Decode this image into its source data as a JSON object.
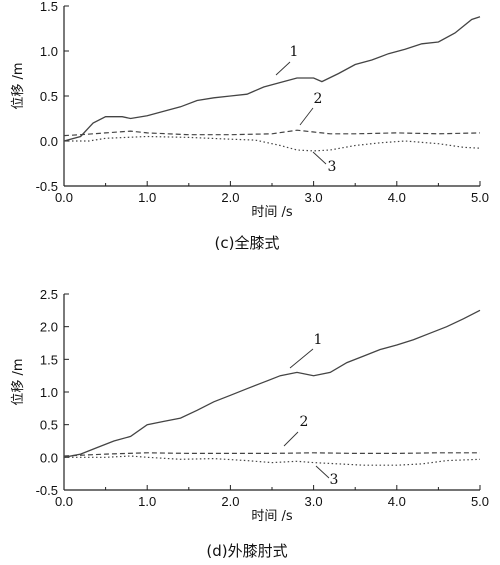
{
  "chart_data": [
    {
      "type": "line",
      "caption": "(c)全膝式",
      "xlabel": "时间 /s",
      "ylabel": "位移 /m",
      "xlim": [
        0,
        5
      ],
      "ylim": [
        -0.5,
        1.5
      ],
      "xticks": [
        "0.0",
        "1.0",
        "2.0",
        "3.0",
        "4.0",
        "5.0"
      ],
      "yticks": [
        "-0.5",
        "0.0",
        "0.5",
        "1.0",
        "1.5"
      ],
      "series": [
        {
          "name": "1",
          "style": "solid",
          "x": [
            0.0,
            0.2,
            0.35,
            0.5,
            0.7,
            0.8,
            1.0,
            1.2,
            1.4,
            1.6,
            1.8,
            2.0,
            2.2,
            2.4,
            2.6,
            2.8,
            3.0,
            3.1,
            3.3,
            3.5,
            3.7,
            3.9,
            4.1,
            4.3,
            4.5,
            4.7,
            4.9,
            5.0
          ],
          "y": [
            0.0,
            0.05,
            0.2,
            0.27,
            0.27,
            0.25,
            0.28,
            0.33,
            0.38,
            0.45,
            0.48,
            0.5,
            0.52,
            0.6,
            0.65,
            0.7,
            0.7,
            0.66,
            0.75,
            0.85,
            0.9,
            0.97,
            1.02,
            1.08,
            1.1,
            1.2,
            1.35,
            1.38
          ]
        },
        {
          "name": "2",
          "style": "dashed",
          "x": [
            0.0,
            0.2,
            0.5,
            0.8,
            1.0,
            1.5,
            2.0,
            2.5,
            2.8,
            3.0,
            3.2,
            3.5,
            4.0,
            4.5,
            5.0
          ],
          "y": [
            0.06,
            0.07,
            0.09,
            0.11,
            0.09,
            0.07,
            0.07,
            0.08,
            0.12,
            0.1,
            0.08,
            0.08,
            0.09,
            0.08,
            0.09
          ]
        },
        {
          "name": "3",
          "style": "dotted",
          "x": [
            0.0,
            0.3,
            0.5,
            1.0,
            1.5,
            2.0,
            2.3,
            2.6,
            2.8,
            3.0,
            3.2,
            3.5,
            3.8,
            4.1,
            4.5,
            4.8,
            5.0
          ],
          "y": [
            0.0,
            0.0,
            0.03,
            0.05,
            0.04,
            0.02,
            0.01,
            -0.05,
            -0.1,
            -0.11,
            -0.1,
            -0.05,
            -0.02,
            0.0,
            -0.03,
            -0.07,
            -0.08
          ]
        }
      ],
      "labels": [
        "1",
        "2",
        "3"
      ]
    },
    {
      "type": "line",
      "caption": "(d)外膝肘式",
      "xlabel": "时间 /s",
      "ylabel": "位移 /m",
      "xlim": [
        0,
        5
      ],
      "ylim": [
        -0.5,
        2.5
      ],
      "xticks": [
        "0.0",
        "1.0",
        "2.0",
        "3.0",
        "4.0",
        "5.0"
      ],
      "yticks": [
        "-0.5",
        "0.0",
        "0.5",
        "1.0",
        "1.5",
        "2.0",
        "2.5"
      ],
      "series": [
        {
          "name": "1",
          "style": "solid",
          "x": [
            0.0,
            0.2,
            0.4,
            0.6,
            0.8,
            1.0,
            1.2,
            1.4,
            1.6,
            1.8,
            2.0,
            2.2,
            2.4,
            2.6,
            2.8,
            3.0,
            3.2,
            3.4,
            3.6,
            3.8,
            4.0,
            4.2,
            4.4,
            4.6,
            4.8,
            5.0
          ],
          "y": [
            0.0,
            0.05,
            0.15,
            0.25,
            0.32,
            0.5,
            0.55,
            0.6,
            0.72,
            0.85,
            0.95,
            1.05,
            1.15,
            1.25,
            1.3,
            1.25,
            1.3,
            1.45,
            1.55,
            1.65,
            1.72,
            1.8,
            1.9,
            2.0,
            2.12,
            2.25
          ]
        },
        {
          "name": "2",
          "style": "dashed",
          "x": [
            0.0,
            0.5,
            1.0,
            1.5,
            2.0,
            2.5,
            3.0,
            3.5,
            4.0,
            4.5,
            5.0
          ],
          "y": [
            0.02,
            0.05,
            0.07,
            0.06,
            0.06,
            0.06,
            0.07,
            0.06,
            0.06,
            0.07,
            0.07
          ]
        },
        {
          "name": "3",
          "style": "dotted",
          "x": [
            0.0,
            0.5,
            0.8,
            1.0,
            1.4,
            1.8,
            2.2,
            2.5,
            2.8,
            3.0,
            3.3,
            3.6,
            4.0,
            4.3,
            4.6,
            5.0
          ],
          "y": [
            0.0,
            0.0,
            0.02,
            0.0,
            -0.03,
            -0.02,
            -0.05,
            -0.08,
            -0.06,
            -0.08,
            -0.1,
            -0.12,
            -0.12,
            -0.1,
            -0.05,
            -0.03
          ]
        }
      ],
      "labels": [
        "1",
        "2",
        "3"
      ]
    }
  ]
}
